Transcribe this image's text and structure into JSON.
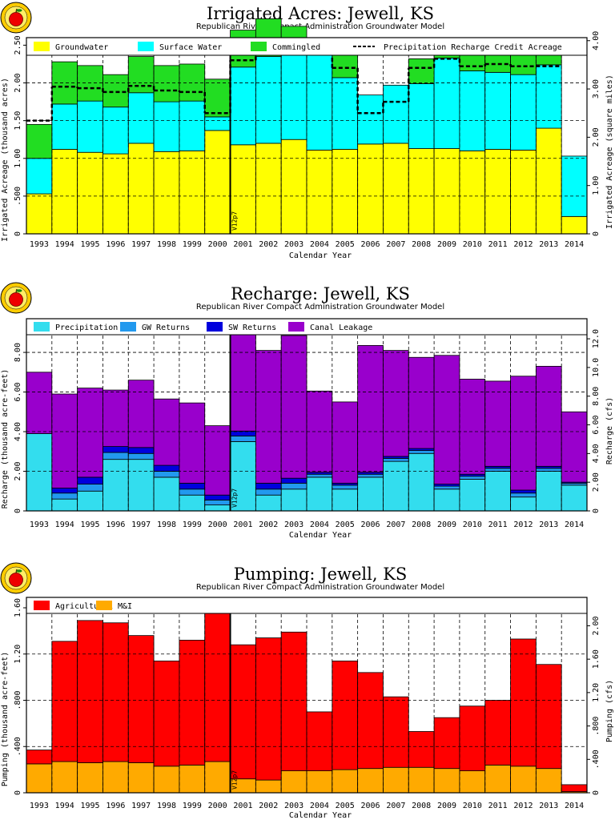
{
  "chart_data": [
    {
      "type": "bar",
      "title": "Irrigated  Acres:  Jewell,  KS",
      "subtitle": "Republican  River  Compact  Administration  Groundwater  Model",
      "xlabel": "Calendar  Year",
      "ylabel": "Irrigated  Acreage  (thousand  acres)",
      "ylabel_right": "Irrigated  Acreage  (square  miles)",
      "marker_label": "V12p7",
      "categories": [
        "1993",
        "1994",
        "1995",
        "1996",
        "1997",
        "1998",
        "1999",
        "2000",
        "2001",
        "2002",
        "2003",
        "2004",
        "2005",
        "2006",
        "2007",
        "2008",
        "2009",
        "2010",
        "2011",
        "2012",
        "2013",
        "2014"
      ],
      "series": [
        {
          "name": "Groundwater",
          "color": "#ffff00",
          "values": [
            0.53,
            1.12,
            1.08,
            1.06,
            1.2,
            1.09,
            1.1,
            1.37,
            1.18,
            1.2,
            1.25,
            1.11,
            1.12,
            1.19,
            1.2,
            1.13,
            1.13,
            1.1,
            1.12,
            1.11,
            1.4,
            0.23
          ]
        },
        {
          "name": "Surface  Water",
          "color": "#00ffff",
          "values": [
            0.47,
            0.6,
            0.68,
            0.62,
            0.67,
            0.66,
            0.66,
            0.18,
            1.03,
            1.15,
            1.33,
            1.3,
            0.95,
            0.65,
            0.77,
            0.86,
            1.2,
            1.06,
            1.02,
            1.0,
            0.84,
            0.8
          ]
        },
        {
          "name": "Commingled",
          "color": "#22dd22",
          "values": [
            0.45,
            0.56,
            0.47,
            0.43,
            0.48,
            0.48,
            0.49,
            0.5,
            0.49,
            0.5,
            0.17,
            0.15,
            0.32,
            0,
            0,
            0.33,
            0.1,
            0.22,
            0.26,
            0.26,
            0.27,
            0
          ]
        }
      ],
      "line_series": {
        "name": "Precipitation  Recharge  Credit  Acreage",
        "style": "dashed",
        "values": [
          1.5,
          1.95,
          1.93,
          1.88,
          1.96,
          1.9,
          1.88,
          1.6,
          2.3,
          2.45,
          2.5,
          2.42,
          2.2,
          1.6,
          1.75,
          2.2,
          2.32,
          2.22,
          2.25,
          2.22,
          2.22,
          null
        ]
      },
      "ylim": [
        0,
        2.6
      ],
      "yticks": [
        0,
        0.5,
        1.0,
        1.5,
        2.0,
        2.5
      ],
      "ytick_labels": [
        "0",
        ".500",
        "1.00",
        "1.50",
        "2.00",
        "2.50"
      ],
      "ylim_right": [
        0,
        4.0625
      ],
      "yticks_right": [
        0,
        1.0,
        2.0,
        3.0,
        4.0
      ],
      "ytick_labels_right": [
        "0",
        "1.00",
        "2.00",
        "3.00",
        "4.00"
      ],
      "grid": true,
      "legend_position": "top"
    },
    {
      "type": "bar",
      "title": "Recharge:  Jewell,  KS",
      "subtitle": "Republican  River  Compact  Administration  Groundwater  Model",
      "xlabel": "Calendar  Year",
      "ylabel": "Recharge  (thousand  acre-feet)",
      "ylabel_right": "Recharge  (cfs)",
      "marker_label": "V12p7",
      "categories": [
        "1993",
        "1994",
        "1995",
        "1996",
        "1997",
        "1998",
        "1999",
        "2000",
        "2001",
        "2002",
        "2003",
        "2004",
        "2005",
        "2006",
        "2007",
        "2008",
        "2009",
        "2010",
        "2011",
        "2012",
        "2013",
        "2014"
      ],
      "series": [
        {
          "name": "Precipitation",
          "color": "#33ddee",
          "values": [
            3.9,
            0.6,
            1.0,
            2.6,
            2.6,
            1.7,
            0.8,
            0.3,
            3.5,
            0.8,
            1.1,
            1.7,
            1.1,
            1.7,
            2.5,
            2.9,
            1.1,
            1.6,
            2.0,
            0.7,
            2.0,
            1.3
          ]
        },
        {
          "name": "GW  Returns",
          "color": "#2299ee",
          "values": [
            0,
            0.3,
            0.35,
            0.35,
            0.3,
            0.3,
            0.3,
            0.25,
            0.28,
            0.3,
            0.3,
            0.15,
            0.2,
            0.15,
            0.15,
            0.15,
            0.15,
            0.15,
            0.15,
            0.2,
            0.15,
            0.1
          ]
        },
        {
          "name": "SW  Returns",
          "color": "#0000dd",
          "values": [
            0,
            0.25,
            0.35,
            0.3,
            0.3,
            0.3,
            0.3,
            0.25,
            0.25,
            0.3,
            0.25,
            0.1,
            0.1,
            0.1,
            0.1,
            0.1,
            0.1,
            0.1,
            0.1,
            0.15,
            0.1,
            0.05
          ]
        },
        {
          "name": "Canal  Leakage",
          "color": "#9900cc",
          "values": [
            3.1,
            4.75,
            4.5,
            2.85,
            3.4,
            3.35,
            4.05,
            3.5,
            5.2,
            6.7,
            7.2,
            4.1,
            4.1,
            6.4,
            5.35,
            4.6,
            6.5,
            4.8,
            4.3,
            5.75,
            5.05,
            3.55
          ]
        }
      ],
      "ylim": [
        0,
        9.7
      ],
      "yticks": [
        0,
        2.0,
        4.0,
        6.0,
        8.0
      ],
      "ytick_labels": [
        "0",
        "2.00",
        "4.00",
        "6.00",
        "8.00"
      ],
      "ylim_right": [
        0,
        13.4
      ],
      "yticks_right": [
        0,
        2.0,
        4.0,
        6.0,
        8.0,
        10.0,
        12.0
      ],
      "ytick_labels_right": [
        "0",
        "2.00",
        "4.00",
        "6.00",
        "8.00",
        "10.0",
        "12.0"
      ],
      "grid": true,
      "legend_position": "top"
    },
    {
      "type": "bar",
      "title": "Pumping:  Jewell,  KS",
      "subtitle": "Republican  River  Compact  Administration  Groundwater  Model",
      "xlabel": "Calendar  Year",
      "ylabel": "Pumping  (thousand  acre-feet)",
      "ylabel_right": "Pumping  (cfs)",
      "marker_label": "V12p7",
      "categories": [
        "1993",
        "1994",
        "1995",
        "1996",
        "1997",
        "1998",
        "1999",
        "2000",
        "2001",
        "2002",
        "2003",
        "2004",
        "2005",
        "2006",
        "2007",
        "2008",
        "2009",
        "2010",
        "2011",
        "2012",
        "2013",
        "2014"
      ],
      "series": [
        {
          "name": "M&I",
          "color": "#ffaa00",
          "values": [
            0.25,
            0.27,
            0.26,
            0.27,
            0.26,
            0.23,
            0.24,
            0.27,
            0.12,
            0.11,
            0.19,
            0.19,
            0.2,
            0.21,
            0.22,
            0.22,
            0.21,
            0.19,
            0.24,
            0.23,
            0.21,
            0.01
          ]
        },
        {
          "name": "Agricultural",
          "color": "#ff0000",
          "values": [
            0.12,
            1.04,
            1.23,
            1.2,
            1.1,
            0.91,
            1.08,
            1.39,
            1.16,
            1.23,
            1.2,
            0.51,
            0.94,
            0.83,
            0.61,
            0.31,
            0.44,
            0.56,
            0.56,
            1.1,
            0.9,
            0.06
          ]
        }
      ],
      "legend_order": [
        "Agricultural",
        "M&I"
      ],
      "ylim": [
        0,
        1.69
      ],
      "yticks": [
        0,
        0.4,
        0.8,
        1.2,
        1.6
      ],
      "ytick_labels": [
        "0",
        ".400",
        ".800",
        "1.20",
        "1.60"
      ],
      "ylim_right": [
        0,
        2.34
      ],
      "yticks_right": [
        0,
        0.4,
        0.8,
        1.2,
        1.6,
        2.0
      ],
      "ytick_labels_right": [
        "0",
        ".400",
        ".800",
        "1.20",
        "1.60",
        "2.00"
      ],
      "grid": true,
      "legend_position": "top"
    }
  ]
}
